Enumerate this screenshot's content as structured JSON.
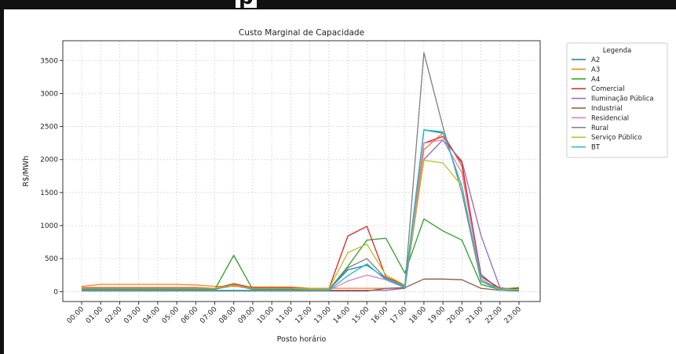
{
  "page": {
    "heading_fragment": "p"
  },
  "chart_data": {
    "type": "line",
    "title": "Custo Marginal de Capacidade",
    "xlabel": "Posto horário",
    "ylabel": "R$/MWh",
    "categories": [
      "00:00",
      "01:00",
      "02:00",
      "03:00",
      "04:00",
      "05:00",
      "06:00",
      "07:00",
      "08:00",
      "09:00",
      "10:00",
      "11:00",
      "12:00",
      "13:00",
      "14:00",
      "15:00",
      "16:00",
      "17:00",
      "18:00",
      "19:00",
      "20:00",
      "21:00",
      "22:00",
      "23:00"
    ],
    "ylim": [
      -150,
      3800
    ],
    "yticks": [
      0,
      500,
      1000,
      1500,
      2000,
      2500,
      3000,
      3500
    ],
    "grid": true,
    "legend": {
      "title": "Legenda",
      "placement": "outside-right"
    },
    "series": [
      {
        "name": "A2",
        "color": "#1f77b4",
        "values": [
          40,
          40,
          40,
          40,
          40,
          40,
          40,
          40,
          90,
          40,
          40,
          40,
          30,
          30,
          330,
          400,
          200,
          80,
          2450,
          2400,
          1900,
          260,
          20,
          10
        ]
      },
      {
        "name": "A3",
        "color": "#ff7f0e",
        "values": [
          80,
          110,
          110,
          110,
          110,
          110,
          100,
          80,
          80,
          70,
          70,
          70,
          50,
          50,
          50,
          50,
          50,
          50,
          2150,
          2400,
          1900,
          150,
          40,
          60
        ]
      },
      {
        "name": "A4",
        "color": "#2ca02c",
        "values": [
          30,
          30,
          30,
          30,
          30,
          30,
          30,
          30,
          550,
          30,
          30,
          30,
          30,
          30,
          380,
          780,
          810,
          280,
          1100,
          920,
          780,
          110,
          30,
          60
        ]
      },
      {
        "name": "Comercial",
        "color": "#d62728",
        "values": [
          60,
          60,
          60,
          60,
          60,
          60,
          60,
          50,
          120,
          60,
          60,
          60,
          40,
          40,
          840,
          990,
          220,
          100,
          2250,
          2350,
          1950,
          230,
          50,
          40
        ]
      },
      {
        "name": "Iluminação Pública",
        "color": "#9467bd",
        "values": [
          20,
          20,
          20,
          20,
          20,
          20,
          20,
          20,
          20,
          20,
          20,
          20,
          20,
          20,
          20,
          20,
          20,
          50,
          2000,
          2300,
          1980,
          850,
          60,
          20
        ]
      },
      {
        "name": "Industrial",
        "color": "#8c564b",
        "values": [
          10,
          10,
          10,
          10,
          10,
          10,
          10,
          10,
          10,
          10,
          10,
          10,
          10,
          10,
          10,
          10,
          50,
          60,
          190,
          190,
          180,
          50,
          20,
          10
        ]
      },
      {
        "name": "Residencial",
        "color": "#e377c2",
        "values": [
          20,
          20,
          20,
          20,
          20,
          20,
          20,
          20,
          20,
          20,
          20,
          20,
          20,
          20,
          160,
          250,
          180,
          60,
          2250,
          2300,
          1800,
          200,
          20,
          20
        ]
      },
      {
        "name": "Rural",
        "color": "#7f7f7f",
        "values": [
          30,
          30,
          30,
          30,
          30,
          30,
          30,
          30,
          110,
          30,
          30,
          30,
          30,
          30,
          360,
          500,
          200,
          80,
          3620,
          2500,
          1500,
          150,
          30,
          20
        ]
      },
      {
        "name": "Serviço Público",
        "color": "#bcbd22",
        "values": [
          50,
          50,
          50,
          50,
          50,
          50,
          50,
          50,
          100,
          50,
          50,
          50,
          40,
          40,
          590,
          720,
          250,
          100,
          1990,
          1950,
          1600,
          150,
          40,
          30
        ]
      },
      {
        "name": "BT",
        "color": "#17becf",
        "values": [
          20,
          20,
          20,
          20,
          20,
          20,
          20,
          20,
          20,
          20,
          20,
          20,
          20,
          20,
          240,
          420,
          180,
          60,
          2450,
          2420,
          1600,
          170,
          20,
          20
        ]
      }
    ]
  }
}
